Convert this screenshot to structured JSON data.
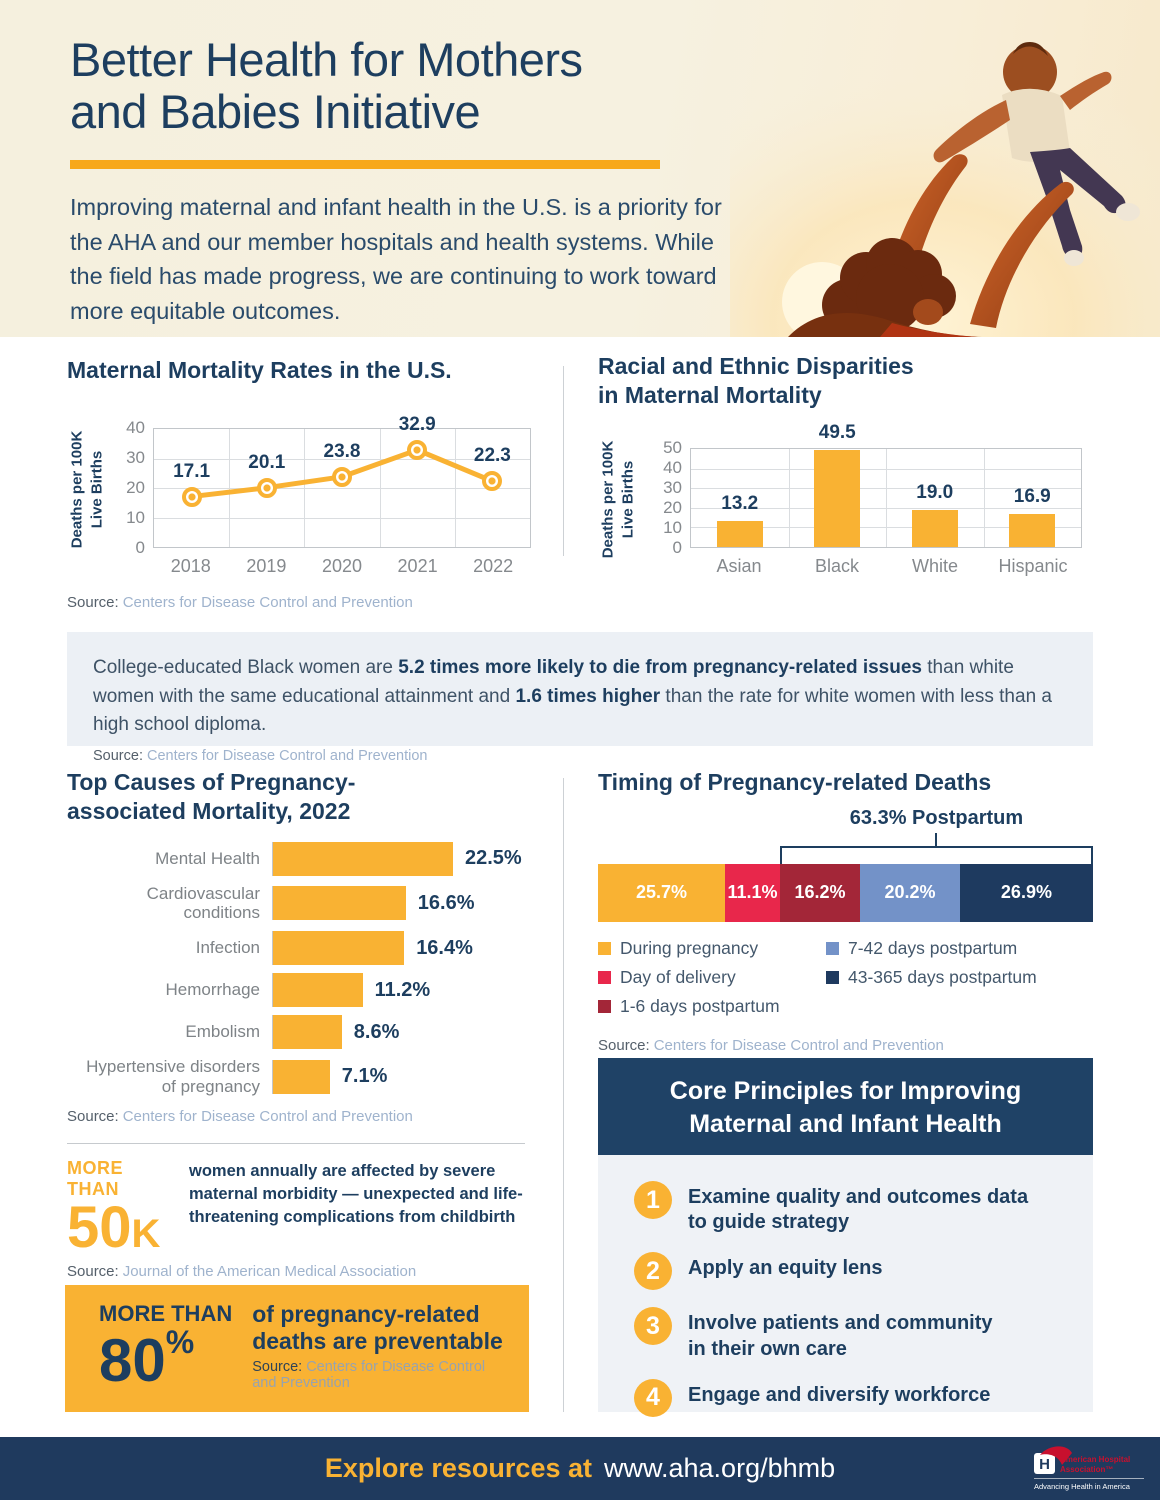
{
  "hero": {
    "title_line1": "Better Health for Mothers",
    "title_line2": "and Babies Initiative",
    "intro": "Improving maternal and infant health in the U.S. is a priority for the AHA and our member hospitals and health systems. While the field has made progress, we are continuing to work toward more equitable outcomes."
  },
  "labels": {
    "source": "Source:"
  },
  "chart_data": [
    {
      "type": "line",
      "title": "Maternal Mortality Rates in the U.S.",
      "ylabel": "Deaths per 100K Live Births",
      "ylabel_lines": [
        "Deaths per 100K",
        "Live Births"
      ],
      "categories": [
        "2018",
        "2019",
        "2020",
        "2021",
        "2022"
      ],
      "values": [
        17.1,
        20.1,
        23.8,
        32.9,
        22.3
      ],
      "labels": [
        "17.1",
        "20.1",
        "23.8",
        "32.9",
        "22.3"
      ],
      "ylim": [
        0,
        40
      ],
      "yticks_top_to_bottom": [
        "40",
        "30",
        "20",
        "10",
        "0"
      ],
      "grid": true,
      "line_color": "#F9B233",
      "source": "Centers for Disease Control and Prevention"
    },
    {
      "type": "bar",
      "title_lines": [
        "Racial and Ethnic Disparities",
        "in Maternal Mortality"
      ],
      "ylabel": "Deaths per 100K Live Births",
      "ylabel_lines": [
        "Deaths per 100K",
        "Live Births"
      ],
      "categories": [
        "Asian",
        "Black",
        "White",
        "Hispanic"
      ],
      "values": [
        13.2,
        49.5,
        19.0,
        16.9
      ],
      "labels": [
        "13.2",
        "49.5",
        "19.0",
        "16.9"
      ],
      "ylim": [
        0,
        50
      ],
      "yticks_top_to_bottom": [
        "50",
        "40",
        "30",
        "20",
        "10",
        "0"
      ],
      "grid": true,
      "bar_color": "#F9B233"
    },
    {
      "type": "bar-horizontal",
      "title_lines": [
        "Top Causes of Pregnancy-",
        "associated Mortality, 2022"
      ],
      "categories": [
        "Mental Health",
        "Cardiovascular conditions",
        "Infection",
        "Hemorrhage",
        "Embolism",
        "Hypertensive disorders\nof pregnancy"
      ],
      "values": [
        22.5,
        16.6,
        16.4,
        11.2,
        8.6,
        7.1
      ],
      "labels": [
        "22.5%",
        "16.6%",
        "16.4%",
        "11.2%",
        "8.6%",
        "7.1%"
      ],
      "unit": "%",
      "bar_color": "#F9B233",
      "source": "Centers for Disease Control and Prevention"
    },
    {
      "type": "stacked-bar",
      "title": "Timing of Pregnancy-related Deaths",
      "annotation": "63.3% Postpartum",
      "postpartum_total_pct": 63.3,
      "segments": [
        {
          "label": "During pregnancy",
          "value": 25.7,
          "display": "25.7%",
          "color": "#F9B233"
        },
        {
          "label": "Day of delivery",
          "value": 11.1,
          "display": "11.1%",
          "color": "#E8274B"
        },
        {
          "label": "1-6 days postpartum",
          "value": 16.2,
          "display": "16.2%",
          "color": "#A32638"
        },
        {
          "label": "7-42 days postpartum",
          "value": 20.2,
          "display": "20.2%",
          "color": "#7392C8"
        },
        {
          "label": "43-365 days postpartum",
          "value": 26.9,
          "display": "26.9%",
          "color": "#1E3A5F"
        }
      ],
      "source": "Centers for Disease Control and Prevention"
    }
  ],
  "callout": {
    "parts": [
      {
        "t": "College-educated Black women are ",
        "b": false
      },
      {
        "t": "5.2 times more likely to die from pregnancy-related issues",
        "b": true
      },
      {
        "t": " than white women with the same educational attainment and ",
        "b": false
      },
      {
        "t": "1.6 times higher",
        "b": true
      },
      {
        "t": " than the rate for white women with less than a high school diploma.",
        "b": false
      }
    ],
    "source": "Centers for Disease Control and Prevention"
  },
  "stats": {
    "morbidity": {
      "kicker": "MORE THAN",
      "value": "50",
      "suffix": "K",
      "text": "women annually are affected by severe\nmaternal morbidity — unexpected and life-\nthreatening complications from childbirth",
      "source": "Journal of the American Medical Association"
    },
    "preventable": {
      "kicker": "MORE THAN",
      "value": "80",
      "unit": "%",
      "line1": "of pregnancy-related",
      "line2": "deaths are preventable",
      "source": "Centers for Disease Control and Prevention"
    }
  },
  "core_principles": {
    "title_lines": [
      "Core Principles for Improving",
      "Maternal and Infant Health"
    ],
    "items": [
      "Examine quality and outcomes data\nto guide strategy",
      "Apply an equity lens",
      "Involve patients and community\nin their own care",
      "Engage and diversify workforce"
    ]
  },
  "footer": {
    "prefix": "Explore resources at",
    "url": "www.aha.org/bhmb",
    "logo": {
      "line1": "American Hospital",
      "line2": "Association™",
      "tagline": "Advancing Health in America"
    }
  },
  "colors": {
    "navy_text": "#1D3E5F",
    "gold": "#F9B233",
    "red": "#E8274B",
    "dark_red": "#A32638",
    "medium_blue": "#7392C8",
    "dark_navy": "#1E3A5F",
    "callout_bg": "#ECF0F5",
    "panel_bg": "#EFF2F6",
    "footer_bg": "#1F3A5E"
  }
}
